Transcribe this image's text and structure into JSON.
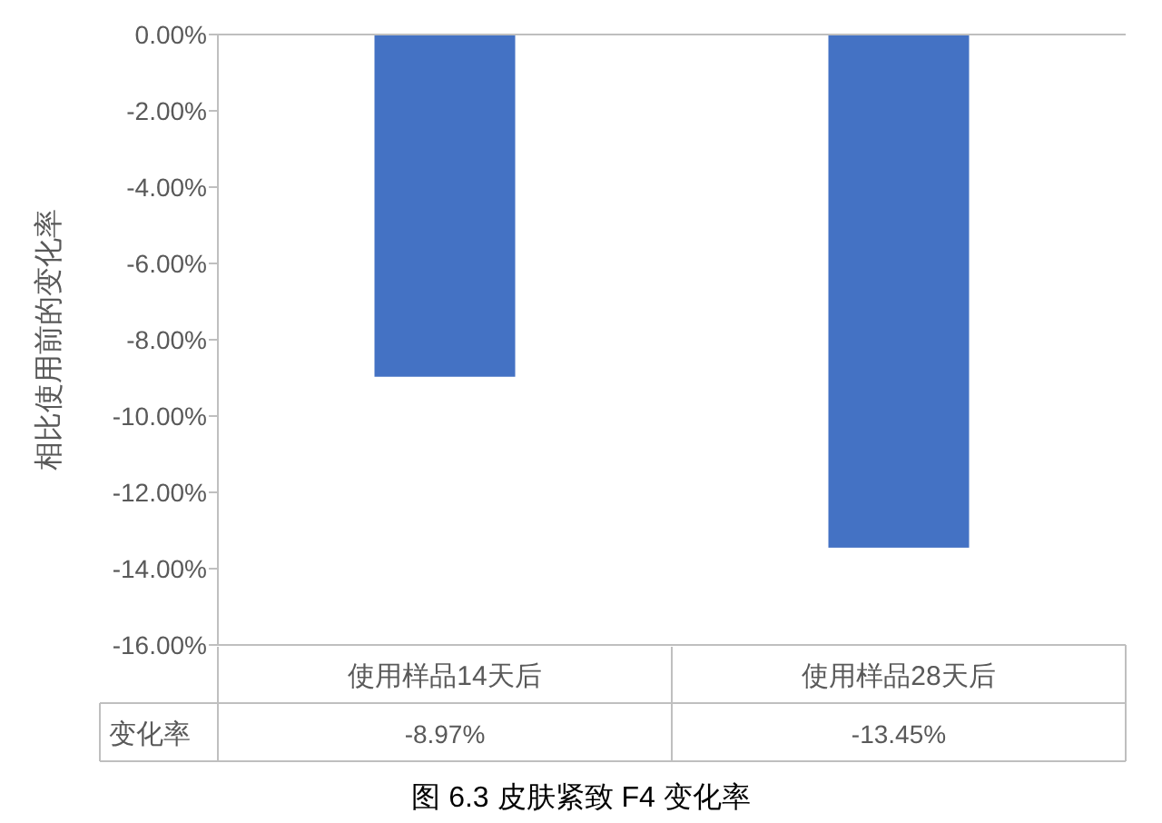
{
  "chart_data": {
    "type": "bar",
    "title": "图 6.3 皮肤紧致 F4 变化率",
    "ylabel": "相比使用前的变化率",
    "categories": [
      "使用样品14天后",
      "使用样品28天后"
    ],
    "series": [
      {
        "name": "变化率",
        "color": "#4472c4",
        "values": [
          -8.97,
          -13.45
        ],
        "value_labels": [
          "-8.97%",
          "-13.45%"
        ]
      }
    ],
    "ylim": [
      -16,
      0
    ],
    "yticks": [
      {
        "value": 0,
        "label": "0.00%"
      },
      {
        "value": -2,
        "label": "-2.00%"
      },
      {
        "value": -4,
        "label": "-4.00%"
      },
      {
        "value": -6,
        "label": "-6.00%"
      },
      {
        "value": -8,
        "label": "-8.00%"
      },
      {
        "value": -10,
        "label": "-10.00%"
      },
      {
        "value": -12,
        "label": "-12.00%"
      },
      {
        "value": -14,
        "label": "-14.00%"
      },
      {
        "value": -16,
        "label": "-16.00%"
      }
    ],
    "grid": false
  }
}
